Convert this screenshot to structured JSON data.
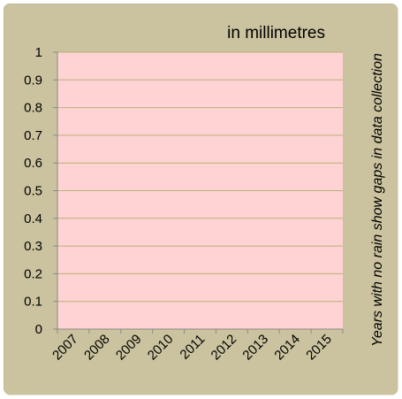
{
  "chart_data": {
    "type": "bar",
    "title": "",
    "unit_label": "in millimetres",
    "side_note": "Years with no rain show gaps in data collection",
    "xlabel": "",
    "ylabel": "",
    "categories": [
      "2007",
      "2008",
      "2009",
      "2010",
      "2011",
      "2012",
      "2013",
      "2014",
      "2015"
    ],
    "values": [
      null,
      null,
      null,
      null,
      null,
      null,
      null,
      null,
      null
    ],
    "ylim": [
      0,
      1
    ],
    "yticks": [
      "0",
      "0.1",
      "0.2",
      "0.3",
      "0.4",
      "0.5",
      "0.6",
      "0.7",
      "0.8",
      "0.9",
      "1"
    ],
    "grid": true,
    "legend": "none"
  },
  "colors": {
    "frame_background": "#cbc39f",
    "plot_background": "#ffd3d3",
    "gridline": "#b9b07a",
    "axis": "#8a8a8a"
  }
}
